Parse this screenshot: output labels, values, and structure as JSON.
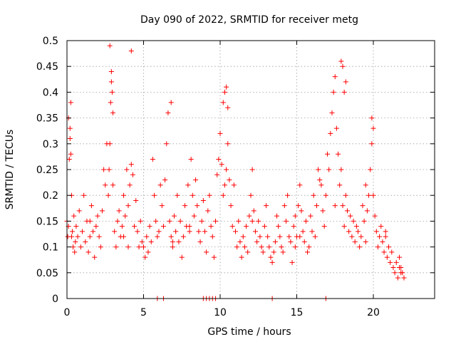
{
  "chart_data": {
    "type": "scatter",
    "title": "Day 090 of 2022, SRMTID for receiver metg",
    "xlabel": "GPS time / hours",
    "ylabel": "SRMTID / TECUs",
    "xlim": [
      0,
      24
    ],
    "ylim": [
      0,
      0.5
    ],
    "xticks": [
      0,
      5,
      10,
      15,
      20
    ],
    "yticks": [
      0,
      0.05,
      0.1,
      0.15,
      0.2,
      0.25,
      0.3,
      0.35,
      0.4,
      0.45,
      0.5
    ],
    "xtick_labels": [
      "0",
      "5",
      "10",
      "15",
      "20"
    ],
    "ytick_labels": [
      "0",
      "0.05",
      "0.1",
      "0.15",
      "0.2",
      "0.25",
      "0.3",
      "0.35",
      "0.4",
      "0.45",
      "0.5"
    ],
    "grid": true,
    "marker": "+",
    "color": "#ff0000",
    "series": [
      {
        "name": "SRMTID",
        "x": [
          0.0,
          0.05,
          0.1,
          0.15,
          0.2,
          0.25,
          0.3,
          0.35,
          0.4,
          0.45,
          0.5,
          0.55,
          0.6,
          0.7,
          0.8,
          0.9,
          1.0,
          1.1,
          1.2,
          1.3,
          1.4,
          1.5,
          1.6,
          1.7,
          1.8,
          1.9,
          2.0,
          2.1,
          2.2,
          2.3,
          2.4,
          2.5,
          2.6,
          2.7,
          2.75,
          2.8,
          2.85,
          2.9,
          3.0,
          3.1,
          3.2,
          3.3,
          3.4,
          3.5,
          3.6,
          3.7,
          3.8,
          3.9,
          4.0,
          4.1,
          4.2,
          4.3,
          4.4,
          4.5,
          4.6,
          4.7,
          4.8,
          4.9,
          5.0,
          5.1,
          5.2,
          5.3,
          5.4,
          5.5,
          5.6,
          5.7,
          5.8,
          5.9,
          6.0,
          6.1,
          6.2,
          6.3,
          6.4,
          6.5,
          6.6,
          6.7,
          6.8,
          6.9,
          7.0,
          7.1,
          7.2,
          7.3,
          7.4,
          7.5,
          7.6,
          7.7,
          7.8,
          7.9,
          8.0,
          8.1,
          8.2,
          8.3,
          8.4,
          8.5,
          8.6,
          8.7,
          8.8,
          8.9,
          9.0,
          9.1,
          9.2,
          9.3,
          9.4,
          9.5,
          9.6,
          9.7,
          9.8,
          9.9,
          10.0,
          10.1,
          10.2,
          10.3,
          10.4,
          10.5,
          10.6,
          10.7,
          10.8,
          10.9,
          11.0,
          11.1,
          11.2,
          11.3,
          11.4,
          11.5,
          11.6,
          11.7,
          11.8,
          11.9,
          12.0,
          12.1,
          12.2,
          12.3,
          12.4,
          12.5,
          12.6,
          12.7,
          12.8,
          12.9,
          13.0,
          13.1,
          13.2,
          13.3,
          13.4,
          13.5,
          13.6,
          13.7,
          13.8,
          13.9,
          14.0,
          14.1,
          14.2,
          14.3,
          14.4,
          14.5,
          14.6,
          14.7,
          14.8,
          14.9,
          15.0,
          15.1,
          15.2,
          15.3,
          15.4,
          15.5,
          15.6,
          15.7,
          15.8,
          15.9,
          16.0,
          16.1,
          16.2,
          16.3,
          16.4,
          16.5,
          16.6,
          16.7,
          16.8,
          16.9,
          17.0,
          17.1,
          17.2,
          17.3,
          17.4,
          17.5,
          17.6,
          17.7,
          17.8,
          17.9,
          18.0,
          18.1,
          18.2,
          18.3,
          18.4,
          18.5,
          18.6,
          18.7,
          18.8,
          18.9,
          19.0,
          19.1,
          19.2,
          19.3,
          19.4,
          19.5,
          19.6,
          19.7,
          19.8,
          19.9,
          20.0,
          20.1,
          20.2,
          20.3,
          20.4,
          20.5,
          20.6,
          20.7,
          20.8,
          20.9,
          21.0,
          21.1,
          21.2,
          21.3,
          21.4,
          21.5,
          21.6,
          21.7,
          21.8,
          21.9,
          22.0,
          0.1,
          0.2,
          0.25,
          2.8,
          2.9,
          2.95,
          3.0,
          4.2,
          6.8,
          10.3,
          10.4,
          10.5,
          17.9,
          18.0,
          18.1,
          18.2,
          19.9,
          20.0,
          21.7,
          21.8,
          5.9,
          6.3,
          8.9,
          9.1,
          9.3,
          9.5,
          9.7,
          13.4,
          16.9,
          0.3,
          1.5,
          3.7,
          4.0,
          6.9,
          8.0,
          10.2,
          12.1,
          14.9,
          15.2,
          17.5,
          19.5,
          20.8
        ],
        "y": [
          0.15,
          0.12,
          0.14,
          0.27,
          0.33,
          0.38,
          0.2,
          0.13,
          0.1,
          0.16,
          0.09,
          0.11,
          0.14,
          0.12,
          0.17,
          0.1,
          0.13,
          0.2,
          0.11,
          0.15,
          0.09,
          0.12,
          0.18,
          0.13,
          0.08,
          0.14,
          0.16,
          0.12,
          0.1,
          0.17,
          0.25,
          0.22,
          0.3,
          0.2,
          0.25,
          0.3,
          0.38,
          0.44,
          0.22,
          0.13,
          0.1,
          0.15,
          0.17,
          0.12,
          0.14,
          0.2,
          0.16,
          0.25,
          0.18,
          0.22,
          0.26,
          0.24,
          0.14,
          0.19,
          0.13,
          0.1,
          0.15,
          0.11,
          0.1,
          0.08,
          0.12,
          0.09,
          0.14,
          0.11,
          0.27,
          0.2,
          0.15,
          0.12,
          0.13,
          0.22,
          0.18,
          0.14,
          0.23,
          0.3,
          0.36,
          0.15,
          0.12,
          0.1,
          0.16,
          0.13,
          0.2,
          0.11,
          0.15,
          0.08,
          0.12,
          0.18,
          0.14,
          0.22,
          0.13,
          0.27,
          0.2,
          0.16,
          0.23,
          0.18,
          0.13,
          0.11,
          0.15,
          0.19,
          0.13,
          0.09,
          0.17,
          0.2,
          0.14,
          0.12,
          0.08,
          0.15,
          0.24,
          0.27,
          0.32,
          0.26,
          0.38,
          0.22,
          0.25,
          0.3,
          0.23,
          0.18,
          0.14,
          0.22,
          0.13,
          0.1,
          0.15,
          0.11,
          0.08,
          0.12,
          0.1,
          0.14,
          0.09,
          0.16,
          0.2,
          0.25,
          0.17,
          0.13,
          0.11,
          0.15,
          0.12,
          0.1,
          0.09,
          0.14,
          0.18,
          0.12,
          0.1,
          0.08,
          0.07,
          0.09,
          0.11,
          0.16,
          0.14,
          0.12,
          0.1,
          0.09,
          0.18,
          0.15,
          0.2,
          0.12,
          0.11,
          0.07,
          0.14,
          0.16,
          0.12,
          0.18,
          0.22,
          0.17,
          0.13,
          0.11,
          0.15,
          0.09,
          0.1,
          0.16,
          0.13,
          0.2,
          0.12,
          0.18,
          0.25,
          0.23,
          0.22,
          0.17,
          0.14,
          0.2,
          0.28,
          0.25,
          0.32,
          0.36,
          0.4,
          0.43,
          0.33,
          0.28,
          0.22,
          0.25,
          0.18,
          0.14,
          0.2,
          0.17,
          0.13,
          0.16,
          0.12,
          0.15,
          0.11,
          0.14,
          0.13,
          0.1,
          0.12,
          0.18,
          0.15,
          0.22,
          0.17,
          0.2,
          0.25,
          0.3,
          0.2,
          0.16,
          0.13,
          0.1,
          0.12,
          0.14,
          0.11,
          0.09,
          0.12,
          0.08,
          0.1,
          0.07,
          0.09,
          0.06,
          0.05,
          0.07,
          0.04,
          0.06,
          0.05,
          0.05,
          0.04,
          0.35,
          0.31,
          0.28,
          0.49,
          0.42,
          0.4,
          0.36,
          0.48,
          0.38,
          0.4,
          0.41,
          0.37,
          0.46,
          0.45,
          0.4,
          0.42,
          0.35,
          0.33,
          0.08,
          0.06,
          0.0,
          0.0,
          0.0,
          0.0,
          0.0,
          0.0,
          0.0,
          0.0,
          0.0,
          0.12,
          0.15,
          0.12,
          0.1,
          0.11,
          0.14,
          0.2,
          0.15,
          0.1,
          0.12,
          0.18,
          0.11,
          0.13
        ]
      }
    ]
  }
}
